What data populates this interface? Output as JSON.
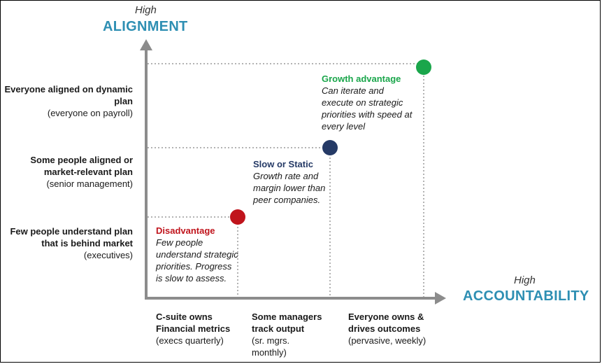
{
  "colors": {
    "axis": "#8c8c8c",
    "axis_title": "#2e8fb3",
    "growth": "#1aa64b",
    "slow": "#253a66",
    "disadvantage": "#c0141c"
  },
  "y_axis": {
    "high_label": "High",
    "title": "ALIGNMENT",
    "levels": [
      {
        "bold": "Everyone aligned on dynamic plan",
        "note": "(everyone on payroll)"
      },
      {
        "bold": "Some people aligned or market-relevant plan",
        "note": "(senior management)"
      },
      {
        "bold": "Few people understand plan that is behind market",
        "note": "(executives)"
      }
    ]
  },
  "x_axis": {
    "high_label": "High",
    "title": "ACCOUNTABILITY",
    "levels": [
      {
        "bold": "C-suite owns Financial metrics",
        "note": "(execs quarterly)"
      },
      {
        "bold": "Some managers track output",
        "note": "(sr. mgrs. monthly)"
      },
      {
        "bold": "Everyone owns & drives outcomes",
        "note": "(pervasive, weekly)"
      }
    ]
  },
  "points": [
    {
      "title": "Disadvantage",
      "desc": "Few people understand strategic priorities. Progress is slow to assess.",
      "color": "#c0141c"
    },
    {
      "title": "Slow or Static",
      "desc": "Growth rate and margin lower than peer companies.",
      "color": "#253a66"
    },
    {
      "title": "Growth advantage",
      "desc": "Can iterate and execute on strategic priorities with speed at every level",
      "color": "#1aa64b"
    }
  ]
}
